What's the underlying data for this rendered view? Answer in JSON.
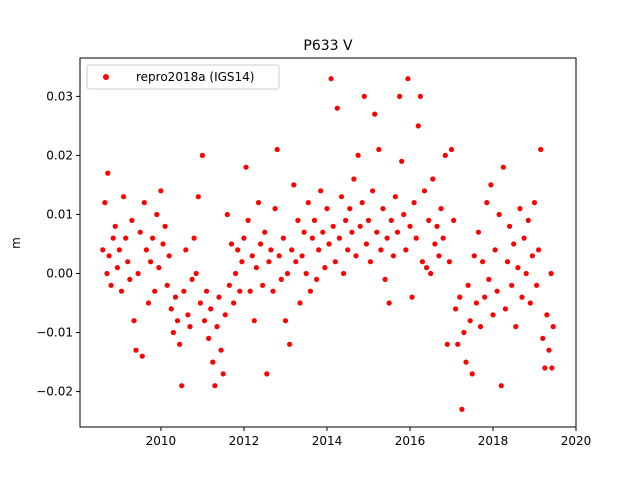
{
  "chart_data": {
    "type": "scatter",
    "title": "P633 V",
    "xlabel": "",
    "ylabel": "m",
    "xlim": [
      2008.05,
      2020.0
    ],
    "ylim": [
      -0.026,
      0.0365
    ],
    "x_ticks": [
      2010,
      2012,
      2014,
      2016,
      2018,
      2020
    ],
    "y_ticks": [
      -0.02,
      -0.01,
      0.0,
      0.01,
      0.02,
      0.03
    ],
    "y_tick_labels": [
      "−0.02",
      "−0.01",
      "0.00",
      "0.01",
      "0.02",
      "0.03"
    ],
    "grid": false,
    "legend_position": "top-left",
    "marker_color": "#ff0000",
    "series": [
      {
        "name": "repro2018a (IGS14)",
        "note_x_range": [
          2008.6,
          2019.45
        ],
        "points": [
          [
            2008.6,
            0.004
          ],
          [
            2008.65,
            0.012
          ],
          [
            2008.7,
            0.0
          ],
          [
            2008.72,
            0.017
          ],
          [
            2008.75,
            0.003
          ],
          [
            2008.8,
            -0.002
          ],
          [
            2008.85,
            0.006
          ],
          [
            2008.9,
            0.008
          ],
          [
            2008.95,
            0.001
          ],
          [
            2009.0,
            0.004
          ],
          [
            2009.05,
            -0.003
          ],
          [
            2009.1,
            0.013
          ],
          [
            2009.15,
            0.006
          ],
          [
            2009.2,
            0.002
          ],
          [
            2009.25,
            -0.001
          ],
          [
            2009.3,
            0.009
          ],
          [
            2009.35,
            -0.008
          ],
          [
            2009.4,
            -0.013
          ],
          [
            2009.45,
            0.0
          ],
          [
            2009.5,
            0.007
          ],
          [
            2009.55,
            -0.014
          ],
          [
            2009.6,
            0.012
          ],
          [
            2009.65,
            0.004
          ],
          [
            2009.7,
            -0.005
          ],
          [
            2009.75,
            0.002
          ],
          [
            2009.8,
            0.006
          ],
          [
            2009.85,
            -0.003
          ],
          [
            2009.9,
            0.01
          ],
          [
            2009.95,
            0.001
          ],
          [
            2010.0,
            0.014
          ],
          [
            2010.05,
            0.005
          ],
          [
            2010.1,
            0.008
          ],
          [
            2010.15,
            -0.002
          ],
          [
            2010.2,
            0.003
          ],
          [
            2010.25,
            -0.006
          ],
          [
            2010.3,
            -0.01
          ],
          [
            2010.35,
            -0.004
          ],
          [
            2010.4,
            -0.008
          ],
          [
            2010.45,
            -0.012
          ],
          [
            2010.5,
            -0.019
          ],
          [
            2010.55,
            -0.003
          ],
          [
            2010.6,
            0.004
          ],
          [
            2010.65,
            -0.007
          ],
          [
            2010.7,
            -0.009
          ],
          [
            2010.75,
            -0.001
          ],
          [
            2010.8,
            0.006
          ],
          [
            2010.85,
            0.0
          ],
          [
            2010.9,
            0.013
          ],
          [
            2010.95,
            -0.005
          ],
          [
            2011.0,
            0.02
          ],
          [
            2011.05,
            -0.008
          ],
          [
            2011.1,
            -0.003
          ],
          [
            2011.15,
            -0.011
          ],
          [
            2011.2,
            -0.006
          ],
          [
            2011.25,
            -0.015
          ],
          [
            2011.3,
            -0.019
          ],
          [
            2011.35,
            -0.009
          ],
          [
            2011.4,
            -0.004
          ],
          [
            2011.45,
            -0.013
          ],
          [
            2011.5,
            -0.017
          ],
          [
            2011.55,
            -0.007
          ],
          [
            2011.6,
            0.01
          ],
          [
            2011.65,
            -0.002
          ],
          [
            2011.7,
            0.005
          ],
          [
            2011.75,
            -0.005
          ],
          [
            2011.8,
            0.0
          ],
          [
            2011.85,
            0.004
          ],
          [
            2011.9,
            -0.003
          ],
          [
            2011.95,
            0.002
          ],
          [
            2012.0,
            0.006
          ],
          [
            2012.05,
            0.018
          ],
          [
            2012.1,
            0.009
          ],
          [
            2012.15,
            -0.003
          ],
          [
            2012.2,
            0.003
          ],
          [
            2012.25,
            -0.008
          ],
          [
            2012.3,
            0.001
          ],
          [
            2012.35,
            0.012
          ],
          [
            2012.4,
            0.005
          ],
          [
            2012.45,
            -0.002
          ],
          [
            2012.5,
            0.007
          ],
          [
            2012.55,
            -0.017
          ],
          [
            2012.6,
            0.002
          ],
          [
            2012.65,
            0.004
          ],
          [
            2012.7,
            -0.003
          ],
          [
            2012.75,
            0.011
          ],
          [
            2012.8,
            0.021
          ],
          [
            2012.85,
            0.003
          ],
          [
            2012.9,
            -0.001
          ],
          [
            2012.95,
            0.006
          ],
          [
            2013.0,
            -0.008
          ],
          [
            2013.05,
            0.0
          ],
          [
            2013.1,
            -0.012
          ],
          [
            2013.15,
            0.004
          ],
          [
            2013.2,
            0.015
          ],
          [
            2013.25,
            0.002
          ],
          [
            2013.3,
            0.009
          ],
          [
            2013.35,
            -0.005
          ],
          [
            2013.4,
            0.003
          ],
          [
            2013.45,
            0.007
          ],
          [
            2013.5,
            0.0
          ],
          [
            2013.55,
            0.012
          ],
          [
            2013.6,
            -0.003
          ],
          [
            2013.65,
            0.006
          ],
          [
            2013.7,
            0.009
          ],
          [
            2013.75,
            -0.001
          ],
          [
            2013.8,
            0.004
          ],
          [
            2013.85,
            0.014
          ],
          [
            2013.9,
            0.007
          ],
          [
            2013.95,
            0.001
          ],
          [
            2014.0,
            0.011
          ],
          [
            2014.05,
            0.005
          ],
          [
            2014.1,
            0.033
          ],
          [
            2014.15,
            0.008
          ],
          [
            2014.2,
            0.002
          ],
          [
            2014.25,
            0.028
          ],
          [
            2014.3,
            0.006
          ],
          [
            2014.35,
            0.013
          ],
          [
            2014.4,
            0.0
          ],
          [
            2014.45,
            0.009
          ],
          [
            2014.5,
            0.004
          ],
          [
            2014.55,
            0.011
          ],
          [
            2014.6,
            0.007
          ],
          [
            2014.65,
            0.016
          ],
          [
            2014.7,
            0.003
          ],
          [
            2014.75,
            0.02
          ],
          [
            2014.8,
            0.008
          ],
          [
            2014.85,
            0.012
          ],
          [
            2014.9,
            0.03
          ],
          [
            2014.95,
            0.005
          ],
          [
            2015.0,
            0.009
          ],
          [
            2015.05,
            0.002
          ],
          [
            2015.1,
            0.014
          ],
          [
            2015.15,
            0.027
          ],
          [
            2015.2,
            0.007
          ],
          [
            2015.25,
            0.021
          ],
          [
            2015.3,
            0.004
          ],
          [
            2015.35,
            0.011
          ],
          [
            2015.4,
            -0.001
          ],
          [
            2015.45,
            0.006
          ],
          [
            2015.5,
            -0.005
          ],
          [
            2015.55,
            0.009
          ],
          [
            2015.6,
            0.003
          ],
          [
            2015.65,
            0.013
          ],
          [
            2015.7,
            0.007
          ],
          [
            2015.75,
            0.03
          ],
          [
            2015.8,
            0.019
          ],
          [
            2015.85,
            0.01
          ],
          [
            2015.9,
            0.004
          ],
          [
            2015.95,
            0.033
          ],
          [
            2016.0,
            0.008
          ],
          [
            2016.05,
            -0.004
          ],
          [
            2016.1,
            0.012
          ],
          [
            2016.15,
            0.006
          ],
          [
            2016.2,
            0.025
          ],
          [
            2016.25,
            0.03
          ],
          [
            2016.3,
            0.002
          ],
          [
            2016.35,
            0.014
          ],
          [
            2016.4,
            0.001
          ],
          [
            2016.45,
            0.009
          ],
          [
            2016.5,
            0.0
          ],
          [
            2016.55,
            0.016
          ],
          [
            2016.6,
            0.005
          ],
          [
            2016.65,
            0.008
          ],
          [
            2016.7,
            0.003
          ],
          [
            2016.75,
            0.011
          ],
          [
            2016.8,
            0.006
          ],
          [
            2016.85,
            0.02
          ],
          [
            2016.9,
            -0.012
          ],
          [
            2016.95,
            0.002
          ],
          [
            2017.0,
            0.021
          ],
          [
            2017.05,
            0.009
          ],
          [
            2017.1,
            -0.006
          ],
          [
            2017.15,
            -0.012
          ],
          [
            2017.2,
            -0.004
          ],
          [
            2017.25,
            -0.023
          ],
          [
            2017.3,
            -0.01
          ],
          [
            2017.35,
            -0.015
          ],
          [
            2017.4,
            -0.002
          ],
          [
            2017.45,
            -0.008
          ],
          [
            2017.5,
            -0.017
          ],
          [
            2017.55,
            0.003
          ],
          [
            2017.6,
            -0.005
          ],
          [
            2017.65,
            0.007
          ],
          [
            2017.7,
            -0.009
          ],
          [
            2017.75,
            0.002
          ],
          [
            2017.8,
            -0.004
          ],
          [
            2017.85,
            0.012
          ],
          [
            2017.9,
            -0.001
          ],
          [
            2017.95,
            0.015
          ],
          [
            2018.0,
            -0.007
          ],
          [
            2018.05,
            0.004
          ],
          [
            2018.1,
            -0.003
          ],
          [
            2018.15,
            0.01
          ],
          [
            2018.2,
            -0.019
          ],
          [
            2018.25,
            0.018
          ],
          [
            2018.3,
            -0.006
          ],
          [
            2018.35,
            0.002
          ],
          [
            2018.4,
            0.008
          ],
          [
            2018.45,
            -0.002
          ],
          [
            2018.5,
            0.005
          ],
          [
            2018.55,
            -0.009
          ],
          [
            2018.6,
            0.001
          ],
          [
            2018.65,
            0.011
          ],
          [
            2018.7,
            -0.004
          ],
          [
            2018.75,
            0.006
          ],
          [
            2018.8,
            0.0
          ],
          [
            2018.85,
            0.009
          ],
          [
            2018.9,
            -0.005
          ],
          [
            2018.95,
            0.003
          ],
          [
            2019.0,
            0.012
          ],
          [
            2019.05,
            -0.002
          ],
          [
            2019.1,
            0.004
          ],
          [
            2019.15,
            0.021
          ],
          [
            2019.2,
            -0.011
          ],
          [
            2019.25,
            -0.016
          ],
          [
            2019.3,
            -0.007
          ],
          [
            2019.35,
            -0.013
          ],
          [
            2019.4,
            0.0
          ],
          [
            2019.42,
            -0.016
          ],
          [
            2019.45,
            -0.009
          ]
        ]
      }
    ]
  }
}
